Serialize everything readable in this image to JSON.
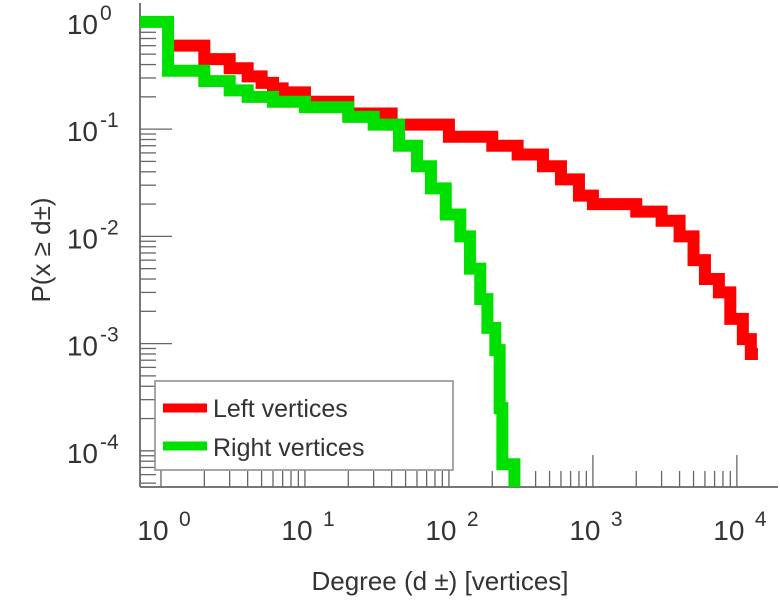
{
  "chart_data": {
    "type": "line",
    "title": "",
    "xlabel": "Degree (d ±) [vertices]",
    "ylabel": "P(x ≥ d±)",
    "xscale": "log",
    "yscale": "log",
    "xlim": [
      0.715,
      19300
    ],
    "ylim": [
      4.6e-05,
      1.5
    ],
    "grid": false,
    "legend_position": "bottom-left",
    "x_ticks": [
      {
        "value": 1,
        "base": "10",
        "exp": "0"
      },
      {
        "value": 10,
        "base": "10",
        "exp": "1"
      },
      {
        "value": 100,
        "base": "10",
        "exp": "2"
      },
      {
        "value": 1000,
        "base": "10",
        "exp": "3"
      },
      {
        "value": 10000,
        "base": "10",
        "exp": "4"
      }
    ],
    "y_ticks": [
      {
        "value": 1,
        "base": "10",
        "exp": "0"
      },
      {
        "value": 0.1,
        "base": "10",
        "exp": "-1"
      },
      {
        "value": 0.01,
        "base": "10",
        "exp": "-2"
      },
      {
        "value": 0.001,
        "base": "10",
        "exp": "-3"
      },
      {
        "value": 0.0001,
        "base": "10",
        "exp": "-4"
      }
    ],
    "series": [
      {
        "name": "Left vertices",
        "color": "#ff0000",
        "points": [
          [
            1.12,
            0.6
          ],
          [
            2,
            0.45
          ],
          [
            3,
            0.37
          ],
          [
            4,
            0.31
          ],
          [
            5,
            0.27
          ],
          [
            6,
            0.24
          ],
          [
            7,
            0.22
          ],
          [
            10,
            0.18
          ],
          [
            20,
            0.14
          ],
          [
            40,
            0.11
          ],
          [
            100,
            0.085
          ],
          [
            200,
            0.07
          ],
          [
            300,
            0.058
          ],
          [
            450,
            0.045
          ],
          [
            600,
            0.034
          ],
          [
            800,
            0.024
          ],
          [
            1000,
            0.02
          ],
          [
            2000,
            0.017
          ],
          [
            3000,
            0.014
          ],
          [
            4000,
            0.01
          ],
          [
            5000,
            0.006
          ],
          [
            6000,
            0.004
          ],
          [
            7500,
            0.003
          ],
          [
            9000,
            0.0017
          ],
          [
            11000,
            0.0011
          ],
          [
            12500,
            0.0008
          ],
          [
            14000,
            0.0008
          ]
        ]
      },
      {
        "name": "Right vertices",
        "color": "#00e000",
        "points": [
          [
            0.715,
            1.0
          ],
          [
            1.12,
            1.0
          ],
          [
            1.12,
            0.35
          ],
          [
            2,
            0.28
          ],
          [
            3,
            0.23
          ],
          [
            4,
            0.2
          ],
          [
            6,
            0.18
          ],
          [
            10,
            0.16
          ],
          [
            20,
            0.13
          ],
          [
            30,
            0.11
          ],
          [
            45,
            0.07
          ],
          [
            60,
            0.045
          ],
          [
            75,
            0.028
          ],
          [
            95,
            0.016
          ],
          [
            120,
            0.01
          ],
          [
            140,
            0.005
          ],
          [
            165,
            0.0026
          ],
          [
            185,
            0.0014
          ],
          [
            210,
            0.00087
          ],
          [
            225,
            0.00025
          ],
          [
            235,
            7.5e-05
          ],
          [
            285,
            7.5e-05
          ],
          [
            285,
            4.6e-05
          ]
        ]
      }
    ]
  }
}
